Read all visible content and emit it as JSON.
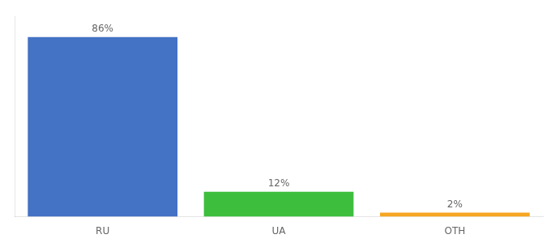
{
  "chart_data": {
    "type": "bar",
    "categories": [
      "RU",
      "UA",
      "OTH"
    ],
    "values": [
      86,
      12,
      2
    ],
    "value_labels": [
      "86%",
      "12%",
      "2%"
    ],
    "colors": [
      "#4472c4",
      "#3dbf3d",
      "#f5a623"
    ],
    "ylim": [
      0,
      96
    ],
    "data_labels": true,
    "tick_labels": "x",
    "grid": false
  }
}
